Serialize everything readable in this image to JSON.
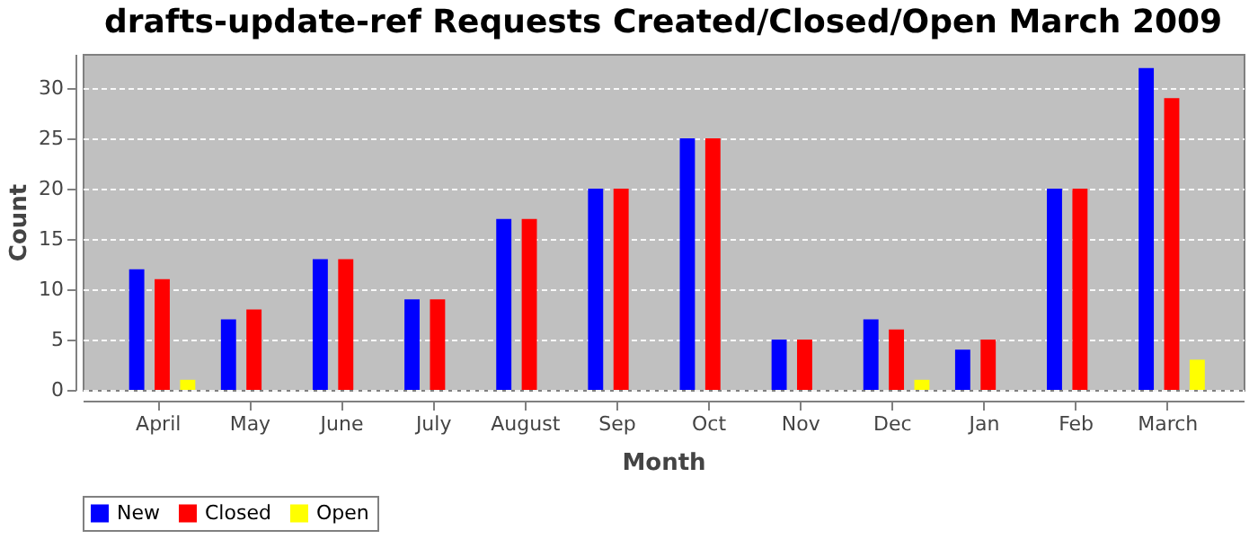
{
  "chart_data": {
    "type": "bar",
    "title": "drafts-update-ref Requests Created/Closed/Open March 2009",
    "xlabel": "Month",
    "ylabel": "Count",
    "categories": [
      "April",
      "May",
      "June",
      "July",
      "August",
      "Sep",
      "Oct",
      "Nov",
      "Dec",
      "Jan",
      "Feb",
      "March"
    ],
    "series": [
      {
        "name": "New",
        "color": "#0000ff",
        "values": [
          12,
          7,
          13,
          9,
          17,
          20,
          25,
          5,
          7,
          4,
          20,
          32
        ]
      },
      {
        "name": "Closed",
        "color": "#ff0000",
        "values": [
          11,
          8,
          13,
          9,
          17,
          20,
          25,
          5,
          6,
          5,
          20,
          29
        ]
      },
      {
        "name": "Open",
        "color": "#ffff00",
        "values": [
          1,
          0,
          0,
          0,
          0,
          0,
          0,
          0,
          1,
          0,
          0,
          3
        ]
      }
    ],
    "ylim": [
      0,
      33.4
    ],
    "yticks": [
      0,
      5,
      10,
      15,
      20,
      25,
      30
    ],
    "grid": "y",
    "legend": "bottom"
  }
}
